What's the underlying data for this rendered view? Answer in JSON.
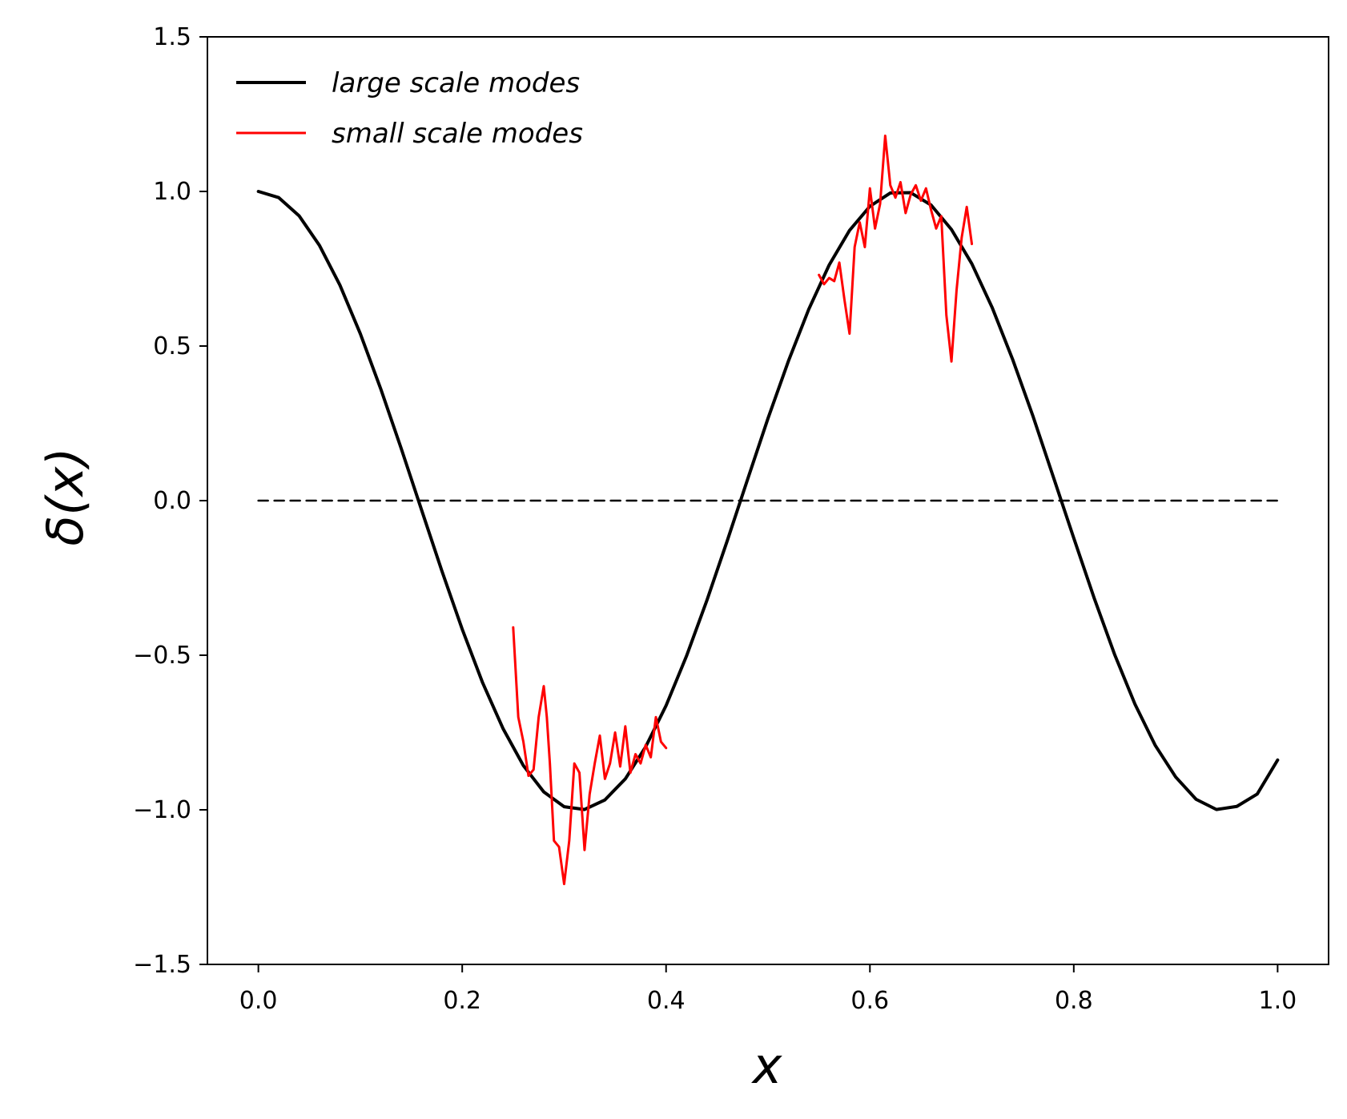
{
  "chart_data": {
    "type": "line",
    "xlabel": "x",
    "ylabel": "δ(x)",
    "xlim": [
      -0.05,
      1.05
    ],
    "ylim": [
      -1.5,
      1.5
    ],
    "xticks": [
      0.0,
      0.2,
      0.4,
      0.6,
      0.8,
      1.0
    ],
    "yticks": [
      -1.5,
      -1.0,
      -0.5,
      0.0,
      0.5,
      1.0,
      1.5
    ],
    "xtick_labels": [
      "0.0",
      "0.2",
      "0.4",
      "0.6",
      "0.8",
      "1.0"
    ],
    "ytick_labels": [
      "−1.5",
      "−1.0",
      "−0.5",
      "0.0",
      "0.5",
      "1.0",
      "1.5"
    ],
    "legend": "top-left",
    "grid": false,
    "series": [
      {
        "name": "large scale modes",
        "color": "#000000",
        "style": "solid",
        "x": [
          0.0,
          0.02,
          0.04,
          0.06,
          0.08,
          0.1,
          0.12,
          0.14,
          0.16,
          0.18,
          0.2,
          0.22,
          0.24,
          0.26,
          0.28,
          0.3,
          0.32,
          0.34,
          0.36,
          0.38,
          0.4,
          0.42,
          0.44,
          0.46,
          0.48,
          0.5,
          0.52,
          0.54,
          0.56,
          0.58,
          0.6,
          0.62,
          0.64,
          0.66,
          0.68,
          0.7,
          0.72,
          0.74,
          0.76,
          0.78,
          0.8,
          0.82,
          0.84,
          0.86,
          0.88,
          0.9,
          0.92,
          0.94,
          0.96,
          0.98,
          1.0
        ],
        "y": [
          1.0,
          0.98,
          0.921,
          0.825,
          0.697,
          0.54,
          0.362,
          0.17,
          -0.029,
          -0.227,
          -0.416,
          -0.589,
          -0.737,
          -0.857,
          -0.942,
          -0.99,
          -0.999,
          -0.968,
          -0.9,
          -0.796,
          -0.663,
          -0.503,
          -0.323,
          -0.13,
          0.069,
          0.266,
          0.451,
          0.619,
          0.762,
          0.874,
          0.952,
          0.995,
          0.996,
          0.956,
          0.877,
          0.766,
          0.624,
          0.457,
          0.273,
          0.076,
          -0.121,
          -0.315,
          -0.497,
          -0.658,
          -0.792,
          -0.894,
          -0.966,
          -0.999,
          -0.989,
          -0.949,
          -0.839
        ]
      },
      {
        "name": "small scale modes",
        "color": "#ff0000",
        "style": "solid",
        "segments": [
          {
            "x": [
              0.25,
              0.255,
              0.26,
              0.265,
              0.27,
              0.275,
              0.28,
              0.283,
              0.286,
              0.29,
              0.295,
              0.3,
              0.305,
              0.31,
              0.315,
              0.32,
              0.325,
              0.33,
              0.335,
              0.34,
              0.345,
              0.35,
              0.355,
              0.36,
              0.365,
              0.37,
              0.375,
              0.38,
              0.385,
              0.39,
              0.395,
              0.4
            ],
            "y": [
              -0.41,
              -0.7,
              -0.78,
              -0.89,
              -0.87,
              -0.7,
              -0.6,
              -0.7,
              -0.85,
              -1.1,
              -1.12,
              -1.24,
              -1.1,
              -0.85,
              -0.88,
              -1.13,
              -0.95,
              -0.85,
              -0.76,
              -0.9,
              -0.85,
              -0.75,
              -0.86,
              -0.73,
              -0.88,
              -0.82,
              -0.85,
              -0.79,
              -0.83,
              -0.7,
              -0.78,
              -0.8
            ]
          },
          {
            "x": [
              0.55,
              0.555,
              0.56,
              0.565,
              0.57,
              0.575,
              0.58,
              0.585,
              0.59,
              0.595,
              0.6,
              0.605,
              0.61,
              0.615,
              0.62,
              0.625,
              0.63,
              0.635,
              0.64,
              0.645,
              0.65,
              0.655,
              0.66,
              0.665,
              0.67,
              0.675,
              0.68,
              0.685,
              0.69,
              0.695,
              0.7
            ],
            "y": [
              0.73,
              0.7,
              0.72,
              0.71,
              0.77,
              0.65,
              0.54,
              0.82,
              0.9,
              0.82,
              1.01,
              0.88,
              0.96,
              1.18,
              1.02,
              0.98,
              1.03,
              0.93,
              0.99,
              1.02,
              0.97,
              1.01,
              0.94,
              0.88,
              0.92,
              0.6,
              0.45,
              0.68,
              0.85,
              0.95,
              0.83
            ]
          }
        ]
      },
      {
        "color": "#000000",
        "style": "dashed",
        "x": [
          0.0,
          1.0
        ],
        "y": [
          0.0,
          0.0
        ]
      }
    ]
  }
}
